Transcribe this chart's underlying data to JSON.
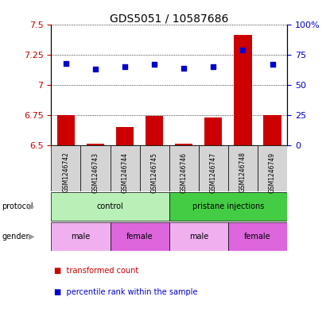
{
  "title": "GDS5051 / 10587686",
  "samples": [
    "GSM1246742",
    "GSM1246743",
    "GSM1246744",
    "GSM1246745",
    "GSM1246746",
    "GSM1246747",
    "GSM1246748",
    "GSM1246749"
  ],
  "transformed_counts": [
    6.75,
    6.51,
    6.65,
    6.74,
    6.51,
    6.73,
    7.42,
    6.75
  ],
  "percentile_ranks": [
    68,
    63,
    65,
    67,
    64,
    65,
    79,
    67
  ],
  "ylim_left": [
    6.5,
    7.5
  ],
  "yticks_left": [
    6.5,
    6.75,
    7.0,
    7.25,
    7.5
  ],
  "ytick_labels_left": [
    "6.5",
    "6.75",
    "7",
    "7.25",
    "7.5"
  ],
  "ylim_right": [
    0,
    100
  ],
  "yticks_right": [
    0,
    25,
    50,
    75,
    100
  ],
  "ytick_labels_right": [
    "0",
    "25",
    "50",
    "75",
    "100%"
  ],
  "bar_color": "#cc0000",
  "dot_color": "#0000cc",
  "bar_width": 0.6,
  "protocol_labels": [
    {
      "text": "control",
      "start": 0,
      "end": 3,
      "color": "#b8f0b8"
    },
    {
      "text": "pristane injections",
      "start": 4,
      "end": 7,
      "color": "#44cc44"
    }
  ],
  "gender_labels": [
    {
      "text": "male",
      "start": 0,
      "end": 1,
      "color": "#f0b0f0"
    },
    {
      "text": "female",
      "start": 2,
      "end": 3,
      "color": "#dd66dd"
    },
    {
      "text": "male",
      "start": 4,
      "end": 5,
      "color": "#f0b0f0"
    },
    {
      "text": "female",
      "start": 6,
      "end": 7,
      "color": "#dd66dd"
    }
  ],
  "left_label_color": "#cc0000",
  "right_label_color": "#0000cc",
  "legend_items": [
    {
      "label": "transformed count",
      "color": "#cc0000"
    },
    {
      "label": "percentile rank within the sample",
      "color": "#0000cc"
    }
  ],
  "figsize": [
    4.15,
    3.93
  ],
  "dpi": 100
}
